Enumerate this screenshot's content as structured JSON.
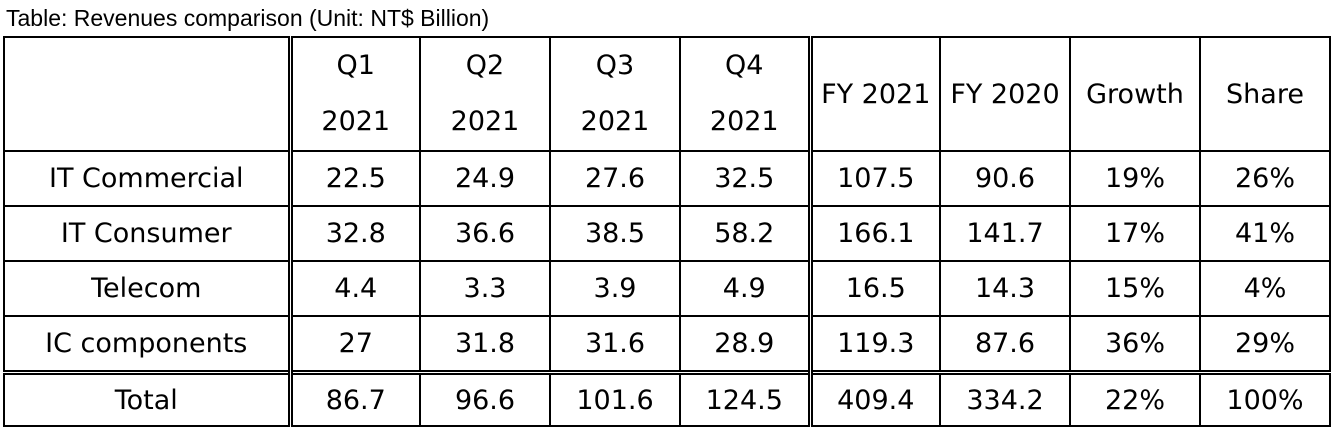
{
  "caption": "Table: Revenues comparison  (Unit: NT$ Billion)",
  "chart_data": {
    "type": "table",
    "title": "Table: Revenues comparison  (Unit: NT$ Billion)",
    "columns": [
      {
        "line1": "",
        "line2": ""
      },
      {
        "line1": "Q1",
        "line2": "2021"
      },
      {
        "line1": "Q2",
        "line2": "2021"
      },
      {
        "line1": "Q3",
        "line2": "2021"
      },
      {
        "line1": "Q4",
        "line2": "2021"
      },
      {
        "line1": "FY 2021",
        "line2": ""
      },
      {
        "line1": "FY 2020",
        "line2": ""
      },
      {
        "line1": "Growth",
        "line2": ""
      },
      {
        "line1": "Share",
        "line2": ""
      }
    ],
    "rows": [
      {
        "label": "IT Commercial",
        "values": [
          "22.5",
          "24.9",
          "27.6",
          "32.5",
          "107.5",
          "90.6",
          "19%",
          "26%"
        ]
      },
      {
        "label": "IT Consumer",
        "values": [
          "32.8",
          "36.6",
          "38.5",
          "58.2",
          "166.1",
          "141.7",
          "17%",
          "41%"
        ]
      },
      {
        "label": "Telecom",
        "values": [
          "4.4",
          "3.3",
          "3.9",
          "4.9",
          "16.5",
          "14.3",
          "15%",
          "4%"
        ]
      },
      {
        "label": "IC components",
        "values": [
          "27",
          "31.8",
          "31.6",
          "28.9",
          "119.3",
          "87.6",
          "36%",
          "29%"
        ]
      }
    ],
    "total": {
      "label": "Total",
      "values": [
        "86.7",
        "96.6",
        "101.6",
        "124.5",
        "409.4",
        "334.2",
        "22%",
        "100%"
      ]
    }
  }
}
